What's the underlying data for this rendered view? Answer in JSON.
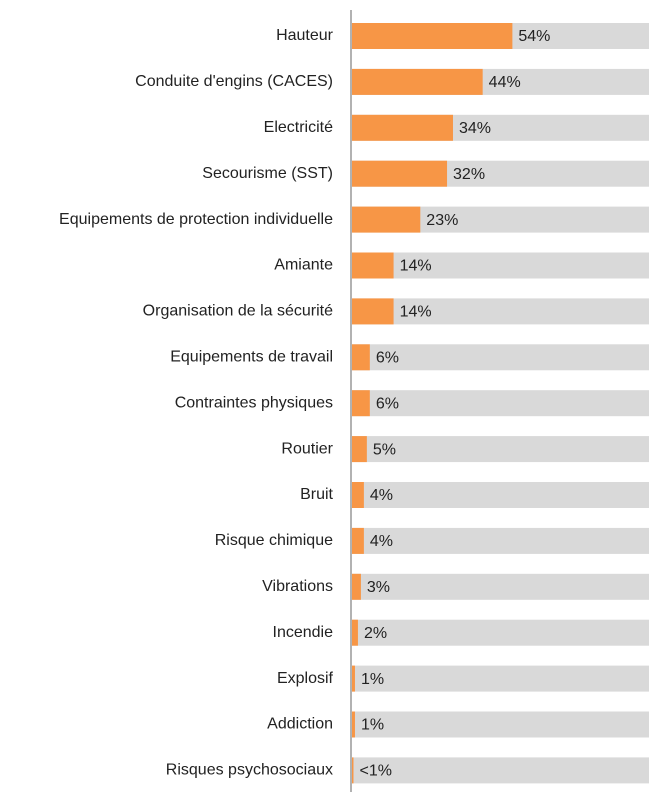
{
  "chart_data": {
    "type": "bar",
    "orientation": "horizontal",
    "categories": [
      "Hauteur",
      "Conduite d'engins (CACES)",
      "Electricité",
      "Secourisme (SST)",
      "Equipements de protection individuelle",
      "Amiante",
      "Organisation de la sécurité",
      "Equipements de travail",
      "Contraintes physiques",
      "Routier",
      "Bruit",
      "Risque chimique",
      "Vibrations",
      "Incendie",
      "Explosif",
      "Addiction",
      "Risques psychosociaux"
    ],
    "values": [
      54,
      44,
      34,
      32,
      23,
      14,
      14,
      6,
      6,
      5,
      4,
      4,
      3,
      2,
      1,
      1,
      0.5
    ],
    "value_labels": [
      "54%",
      "44%",
      "34%",
      "32%",
      "23%",
      "14%",
      "14%",
      "6%",
      "6%",
      "5%",
      "4%",
      "4%",
      "3%",
      "2%",
      "1%",
      "1%",
      "<1%"
    ],
    "color": "#f79646",
    "background_color": "#d9d9d9",
    "xlim": [
      0,
      100
    ]
  }
}
